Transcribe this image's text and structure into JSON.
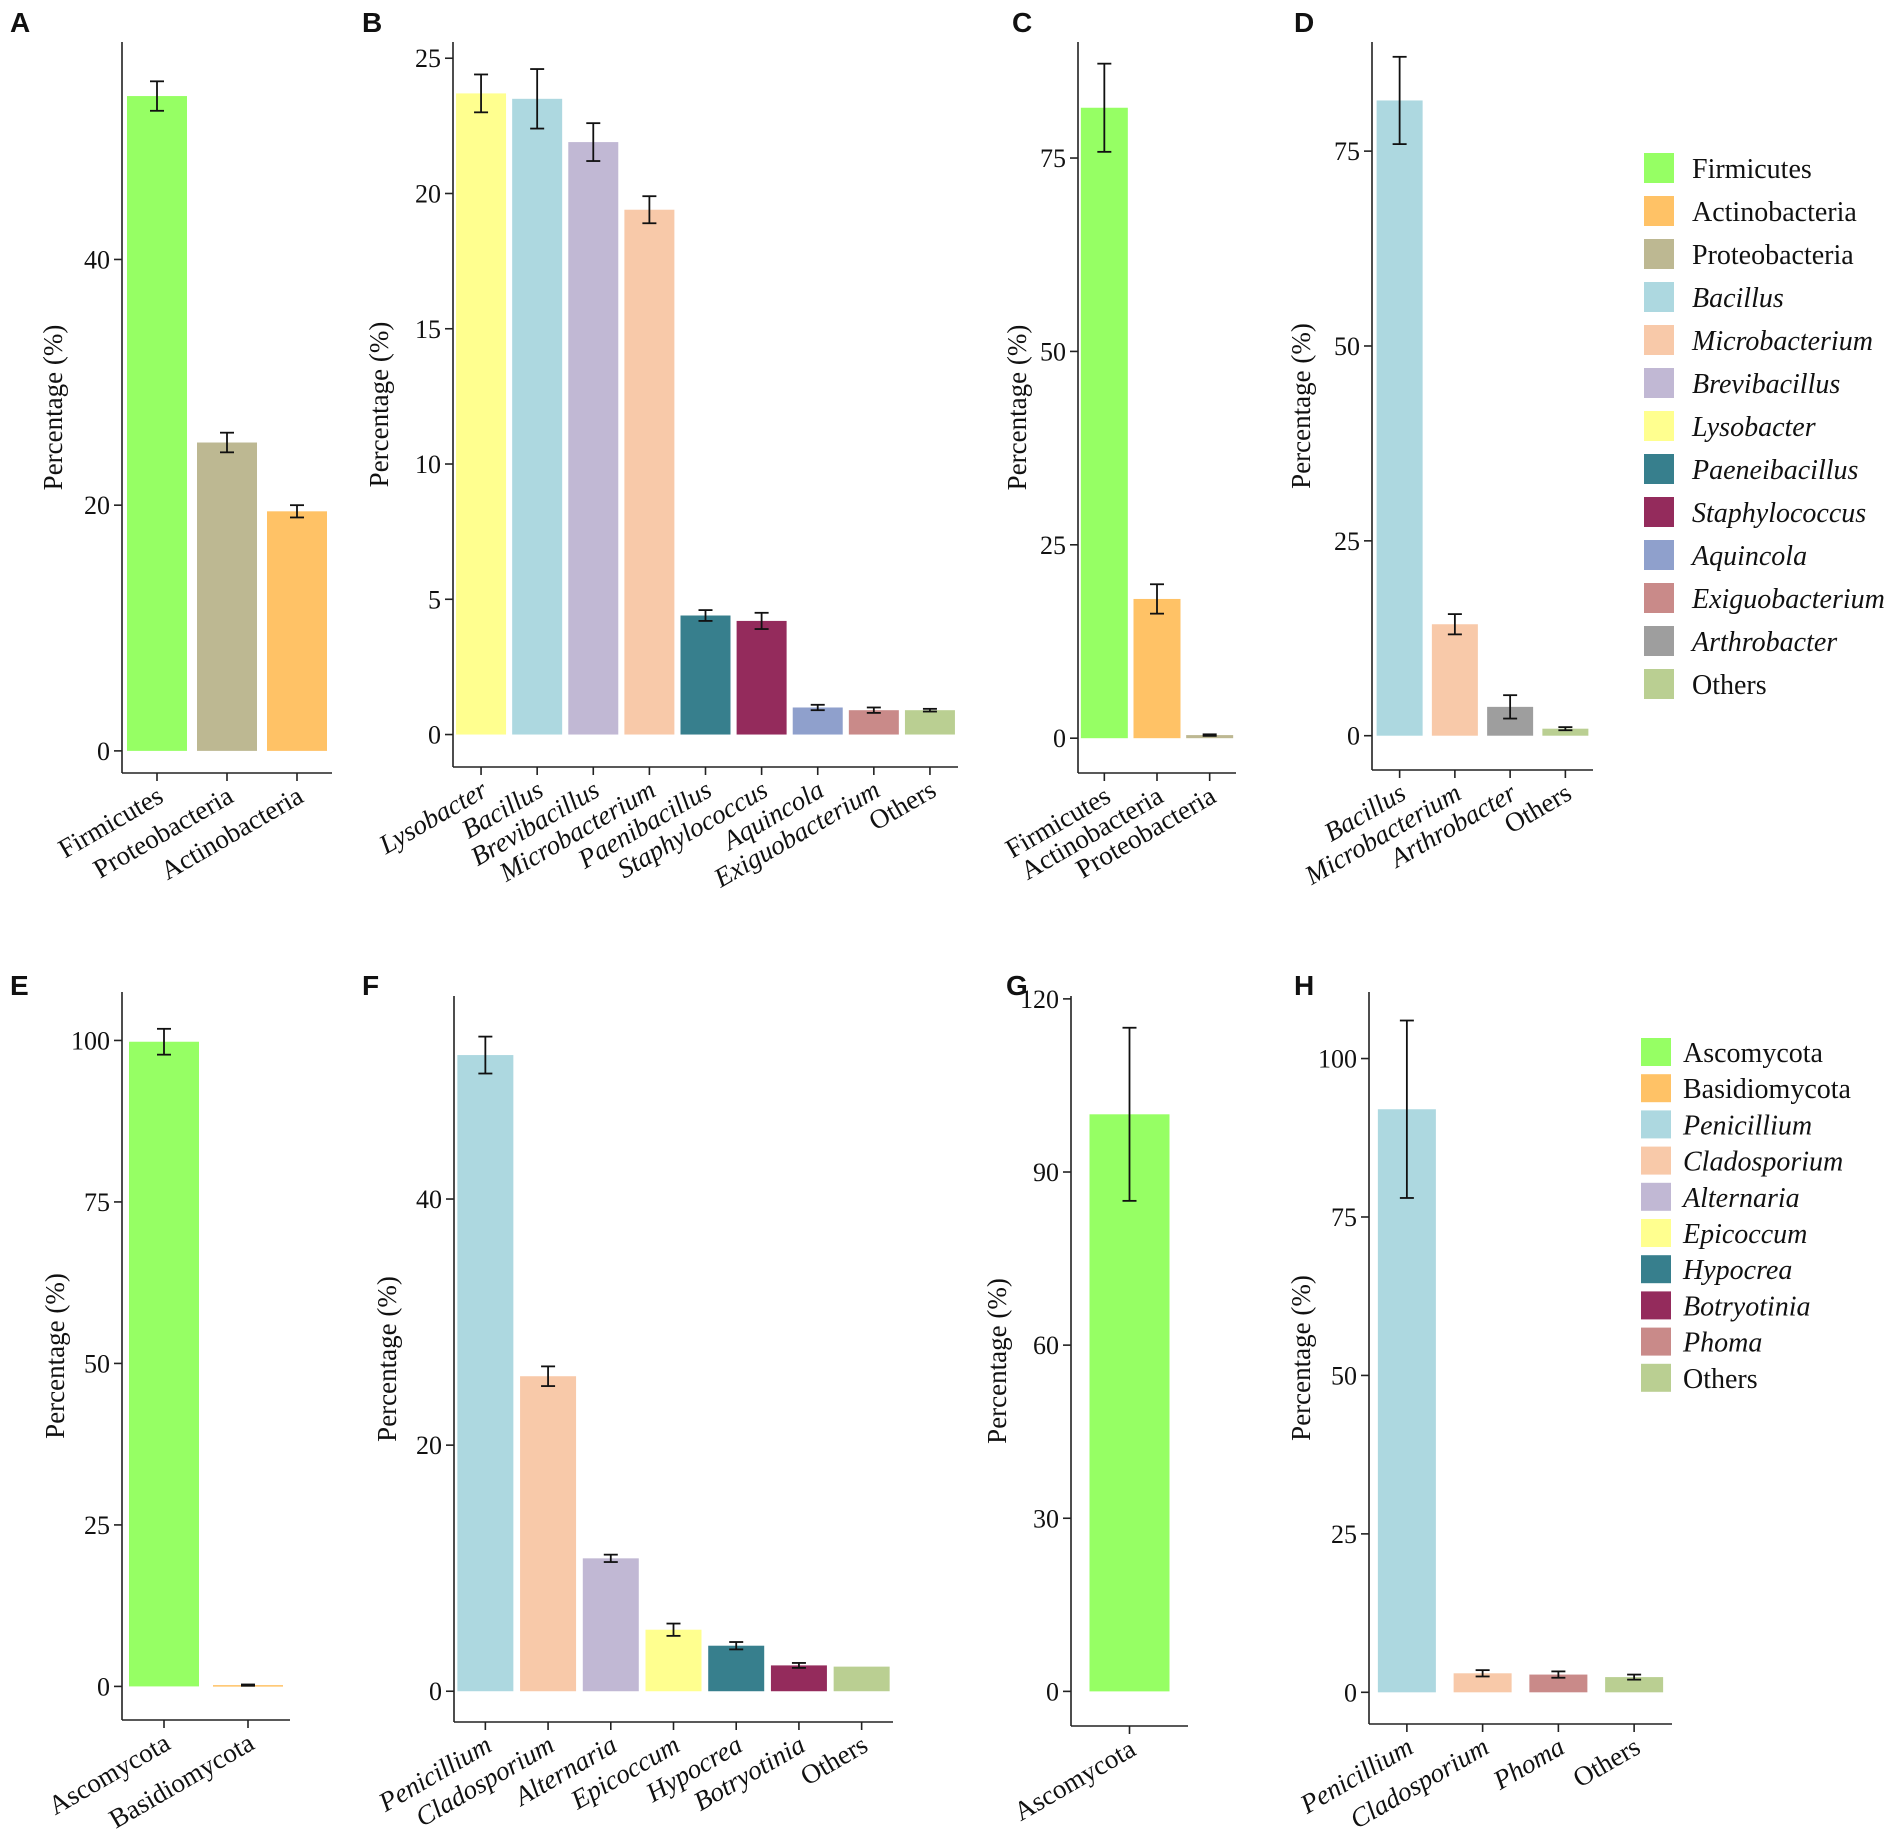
{
  "colors": {
    "Firmicutes": "#96FF64",
    "Actinobacteria": "#FFC266",
    "Proteobacteria": "#BDB892",
    "Bacillus": "#ADD8E0",
    "Microbacterium": "#F8C9A9",
    "Brevibacillus": "#C1B8D4",
    "Lysobacter": "#FFFF8F",
    "Paeneibacillus": "#377F8D",
    "Staphylococcus": "#942B5C",
    "Aquincola": "#8FA0CC",
    "Exiguobacterium": "#C98A89",
    "Arthrobacter": "#9E9E9E",
    "Others": "#BACF92",
    "Ascomycota": "#96FF64",
    "Basidiomycota": "#FFC266",
    "Penicillium": "#ADD8E0",
    "Cladosporium": "#F8C9A9",
    "Alternaria": "#C1B8D4",
    "Epicoccum": "#FFFF8F",
    "Hypocrea": "#377F8D",
    "Botryotinia": "#942B5C",
    "Phoma": "#C98A89"
  },
  "chart_data": [
    {
      "panel": "A",
      "type": "bar",
      "ylabel": "Percentage (%)",
      "ylim": [
        -1.8,
        57.7
      ],
      "yticks": [
        0,
        20,
        40
      ],
      "categories": [
        "Firmicutes",
        "Proteobacteria",
        "Actinobacteria"
      ],
      "italic": [
        false,
        false,
        false
      ],
      "values": [
        53.3,
        25.1,
        19.5
      ],
      "errors": [
        1.2,
        0.8,
        0.5
      ]
    },
    {
      "panel": "B",
      "type": "bar",
      "ylabel": "Percentage (%)",
      "ylim": [
        -1.2,
        25.6
      ],
      "yticks": [
        0,
        5,
        10,
        15,
        20,
        25
      ],
      "categories": [
        "Lysobacter",
        "Bacillus",
        "Brevibacillus",
        "Microbacterium",
        "Paenibacillus",
        "Staphylococcus",
        "Aquincola",
        "Exiguobacterium",
        "Others"
      ],
      "color_keys": [
        "Lysobacter",
        "Bacillus",
        "Brevibacillus",
        "Microbacterium",
        "Paeneibacillus",
        "Staphylococcus",
        "Aquincola",
        "Exiguobacterium",
        "Others"
      ],
      "italic": [
        true,
        true,
        true,
        true,
        true,
        true,
        true,
        true,
        false
      ],
      "values": [
        23.7,
        23.5,
        21.9,
        19.4,
        4.4,
        4.2,
        1.0,
        0.9,
        0.9
      ],
      "errors": [
        0.7,
        1.1,
        0.7,
        0.5,
        0.2,
        0.3,
        0.1,
        0.1,
        0.05
      ]
    },
    {
      "panel": "C",
      "type": "bar",
      "ylabel": "Percentage (%)",
      "ylim": [
        -4.5,
        90
      ],
      "yticks": [
        0,
        25,
        50,
        75
      ],
      "categories": [
        "Firmicutes",
        "Actinobacteria",
        "Proteobacteria"
      ],
      "italic": [
        false,
        false,
        false
      ],
      "values": [
        81.5,
        18.0,
        0.4
      ],
      "errors": [
        5.7,
        1.9,
        0.1
      ]
    },
    {
      "panel": "D",
      "type": "bar",
      "ylabel": "Percentage (%)",
      "ylim": [
        -4.4,
        89
      ],
      "yticks": [
        0,
        25,
        50,
        75
      ],
      "categories": [
        "Bacillus",
        "Microbacterium",
        "Arthrobacter",
        "Others"
      ],
      "italic": [
        true,
        true,
        true,
        false
      ],
      "values": [
        81.5,
        14.3,
        3.7,
        0.9
      ],
      "errors": [
        5.6,
        1.3,
        1.5,
        0.2
      ]
    },
    {
      "panel": "E",
      "type": "bar",
      "ylabel": "Percentage (%)",
      "ylim": [
        -5.2,
        107.5
      ],
      "yticks": [
        0,
        25,
        50,
        75,
        100
      ],
      "categories": [
        "Ascomycota",
        "Basidiomycota"
      ],
      "italic": [
        false,
        false
      ],
      "values": [
        99.8,
        0.2
      ],
      "errors": [
        2.0,
        0.1
      ]
    },
    {
      "panel": "F",
      "type": "bar",
      "ylabel": "Percentage (%)",
      "ylim": [
        -2.5,
        56.5
      ],
      "yticks": [
        0,
        20,
        40
      ],
      "categories": [
        "Penicillium",
        "Cladosporium",
        "Alternaria",
        "Epicoccum",
        "Hypocrea",
        "Botryotinia",
        "Others"
      ],
      "italic": [
        true,
        true,
        true,
        true,
        true,
        true,
        false
      ],
      "values": [
        51.7,
        25.6,
        10.8,
        5.0,
        3.7,
        2.1,
        2.0
      ],
      "errors": [
        1.5,
        0.8,
        0.3,
        0.5,
        0.3,
        0.2,
        0.0
      ]
    },
    {
      "panel": "G",
      "type": "bar",
      "ylabel": "Percentage (%)",
      "ylim": [
        -6,
        120.5
      ],
      "yticks": [
        0,
        30,
        60,
        90,
        120
      ],
      "categories": [
        "Ascomycota"
      ],
      "italic": [
        false
      ],
      "values": [
        100.0
      ],
      "errors": [
        15.0
      ]
    },
    {
      "panel": "H",
      "type": "bar",
      "ylabel": "Percentage (%)",
      "ylim": [
        -5,
        110.5
      ],
      "yticks": [
        0,
        25,
        50,
        75,
        100
      ],
      "categories": [
        "Penicillium",
        "Cladosporium",
        "Phoma",
        "Others"
      ],
      "italic": [
        true,
        true,
        true,
        false
      ],
      "values": [
        92.0,
        3.0,
        2.8,
        2.4
      ],
      "errors": [
        14.0,
        0.5,
        0.5,
        0.4
      ]
    }
  ],
  "legends": [
    {
      "id": "bacteria",
      "entries": [
        {
          "label": "Firmicutes",
          "italic": false
        },
        {
          "label": "Actinobacteria",
          "italic": false
        },
        {
          "label": "Proteobacteria",
          "italic": false
        },
        {
          "label": "Bacillus",
          "italic": true
        },
        {
          "label": "Microbacterium",
          "italic": true
        },
        {
          "label": "Brevibacillus",
          "italic": true
        },
        {
          "label": "Lysobacter",
          "italic": true
        },
        {
          "label": "Paeneibacillus",
          "italic": true
        },
        {
          "label": "Staphylococcus",
          "italic": true
        },
        {
          "label": "Aquincola",
          "italic": true
        },
        {
          "label": "Exiguobacterium",
          "italic": true
        },
        {
          "label": "Arthrobacter",
          "italic": true
        },
        {
          "label": "Others",
          "italic": false
        }
      ]
    },
    {
      "id": "fungi",
      "entries": [
        {
          "label": "Ascomycota",
          "italic": false
        },
        {
          "label": "Basidiomycota",
          "italic": false
        },
        {
          "label": "Penicillium",
          "italic": true
        },
        {
          "label": "Cladosporium",
          "italic": true
        },
        {
          "label": "Alternaria",
          "italic": true
        },
        {
          "label": "Epicoccum",
          "italic": true
        },
        {
          "label": "Hypocrea",
          "italic": true
        },
        {
          "label": "Botryotinia",
          "italic": true
        },
        {
          "label": "Phoma",
          "italic": true
        },
        {
          "label": "Others",
          "italic": false
        }
      ]
    }
  ]
}
